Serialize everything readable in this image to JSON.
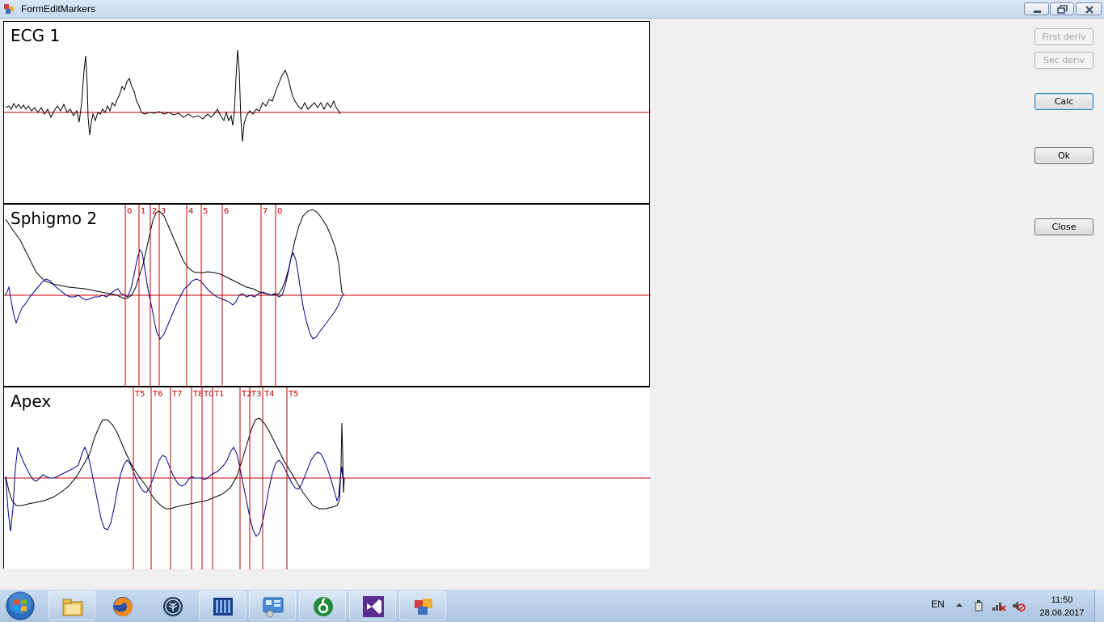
{
  "window": {
    "title": "FormEditMarkers"
  },
  "panels": [
    {
      "label": "ECG 1"
    },
    {
      "label": "Sphigmo 2"
    },
    {
      "label": "Apex"
    }
  ],
  "sphigmo_markers": [
    "0",
    "1",
    "2",
    "3",
    "4",
    "5",
    "6",
    "7",
    "0"
  ],
  "apex_markers": [
    "T5",
    "T6",
    "T7",
    "T8",
    "T0",
    "T1",
    "T2",
    "T3",
    "T4",
    "T5"
  ],
  "buttons": {
    "first_deriv": "First deriv",
    "sec_deriv": "Sec deriv",
    "calc": "Calc",
    "ok": "Ok",
    "close": "Close"
  },
  "colors": {
    "signal": "#000000",
    "derivative": "#00008b",
    "baseline_and_markers": "#c00000"
  },
  "taskbar": {
    "apps": [
      "file-explorer-icon",
      "firefox-icon",
      "network-app-icon",
      "archive-app-icon",
      "control-panel-icon",
      "green-app-icon",
      "visual-studio-icon",
      "form-app-icon"
    ],
    "language": "EN",
    "time": "11:50",
    "date": "28.06.2017"
  }
}
